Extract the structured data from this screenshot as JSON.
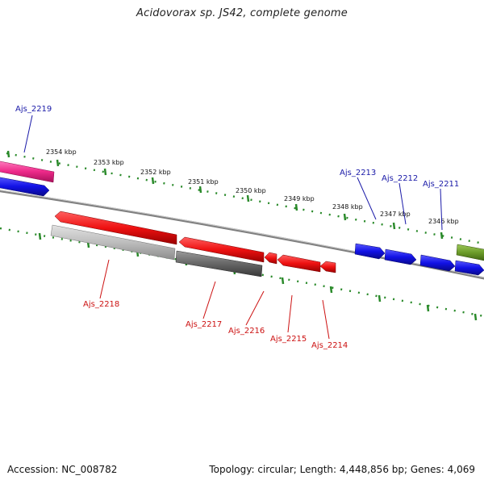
{
  "title": "Acidovorax sp. JS42, complete genome",
  "footer": {
    "accession": "Accession: NC_008782",
    "summary": "Topology: circular; Length: 4,448,856 bp; Genes: 4,069"
  },
  "kbp_labels": [
    "2354 kbp",
    "2353 kbp",
    "2352 kbp",
    "2351 kbp",
    "2350 kbp",
    "2349 kbp",
    "2348 kbp",
    "2347 kbp",
    "2346 kbp"
  ],
  "genes_forward": [
    "Ajs_2219",
    "Ajs_2213",
    "Ajs_2212",
    "Ajs_2211"
  ],
  "genes_reverse": [
    "Ajs_2218",
    "Ajs_2217",
    "Ajs_2216",
    "Ajs_2215",
    "Ajs_2214"
  ],
  "colors": {
    "forward_cds": "#1010e0",
    "reverse_cds": "#ee1111",
    "pink": "#ee2a8a",
    "olive": "#6a9a28",
    "gray_light": "#bbbbbb",
    "gray_dark": "#666666",
    "tick": "#2a8a2a",
    "backbone": "#808080"
  }
}
